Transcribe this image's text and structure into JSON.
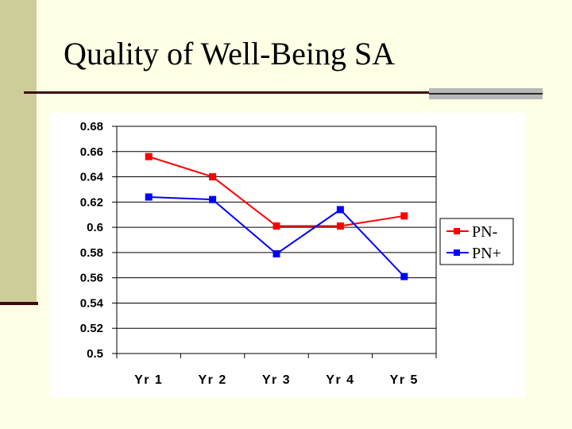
{
  "slide": {
    "title": "Quality of Well-Being SA"
  },
  "chart_data": {
    "type": "line",
    "categories": [
      "Yr 1",
      "Yr 2",
      "Yr 3",
      "Yr 4",
      "Yr 5"
    ],
    "series": [
      {
        "name": "PN-",
        "color": "#FF0000",
        "values": [
          0.656,
          0.64,
          0.601,
          0.601,
          0.609
        ]
      },
      {
        "name": "PN+",
        "color": "#0000FF",
        "values": [
          0.624,
          0.622,
          0.579,
          0.614,
          0.561
        ]
      }
    ],
    "ylim": [
      0.5,
      0.68
    ],
    "yticks": [
      "0.68",
      "0.66",
      "0.64",
      "0.62",
      "0.6",
      "0.58",
      "0.56",
      "0.54",
      "0.52",
      "0.5"
    ],
    "grid": true,
    "legend": "right",
    "title": "",
    "xlabel": "",
    "ylabel": ""
  }
}
